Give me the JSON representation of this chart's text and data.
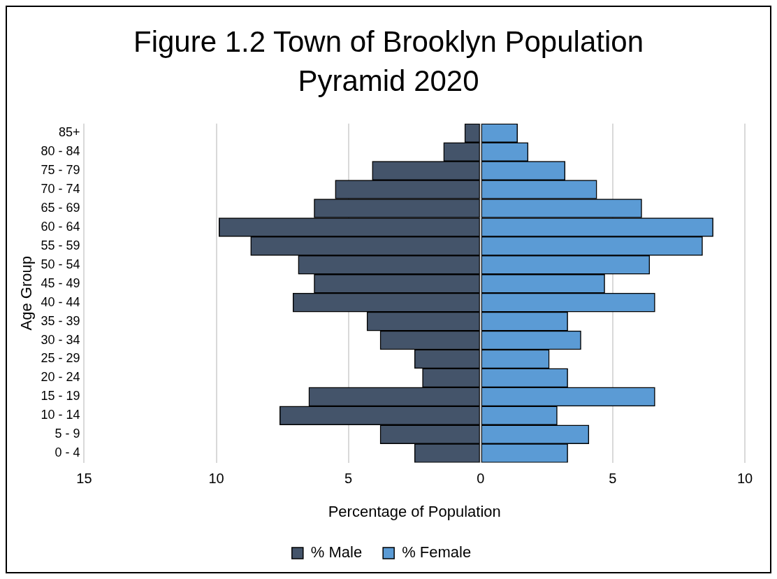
{
  "chart_data": {
    "type": "bar",
    "orientation": "horizontal",
    "title": "Figure 1.2 Town of Brooklyn Population Pyramid 2020",
    "xlabel": "Percentage of Population",
    "ylabel": "Age Group",
    "categories": [
      "85+",
      "80 - 84",
      "75 - 79",
      "70 - 74",
      "65 - 69",
      "60 - 64",
      "55 - 59",
      "50 - 54",
      "45 - 49",
      "40 - 44",
      "35 - 39",
      "30 - 34",
      "25 - 29",
      "20 - 24",
      "15 - 19",
      "10 - 14",
      "5 - 9",
      "0 - 4"
    ],
    "series": [
      {
        "name": "% Male",
        "color": "#44546a",
        "values": [
          -0.6,
          -1.4,
          -4.1,
          -5.5,
          -6.3,
          -9.9,
          -8.7,
          -6.9,
          -6.3,
          -7.1,
          -4.3,
          -3.8,
          -2.5,
          -2.2,
          -6.5,
          -7.6,
          -3.8,
          -2.5
        ]
      },
      {
        "name": "% Female",
        "color": "#5b9bd5",
        "values": [
          1.4,
          1.8,
          3.2,
          4.4,
          6.1,
          8.8,
          8.4,
          6.4,
          4.7,
          6.6,
          3.3,
          3.8,
          2.6,
          3.3,
          6.6,
          2.9,
          4.1,
          3.3
        ]
      }
    ],
    "xlim": [
      -15,
      10
    ],
    "xticks": [
      {
        "value": -15,
        "label": "15"
      },
      {
        "value": -10,
        "label": "10"
      },
      {
        "value": -5,
        "label": "5"
      },
      0,
      5,
      10
    ],
    "stacked": true,
    "grid": "x",
    "legend": "bottom"
  }
}
